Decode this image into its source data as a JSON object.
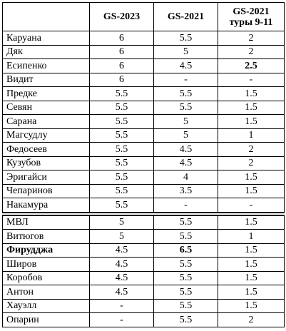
{
  "table": {
    "headers": [
      "GS-2023",
      "GS-2021",
      "GS-2021 туры 9-11"
    ],
    "groups": [
      {
        "rows": [
          [
            "Каруана",
            6,
            5.5,
            2
          ],
          [
            "Дяк",
            6,
            5,
            2
          ],
          [
            "Есипенко",
            6,
            4.5,
            2.5
          ],
          [
            "Видит",
            6,
            "-",
            "-"
          ],
          [
            "Предке",
            5.5,
            5.5,
            1.5
          ],
          [
            "Севян",
            5.5,
            5.5,
            1.5
          ],
          [
            "Сарана",
            5.5,
            5,
            1.5
          ],
          [
            "Магсудлу",
            5.5,
            5,
            1
          ],
          [
            "Федосеев",
            5.5,
            4.5,
            2
          ],
          [
            "Кузубов",
            5.5,
            4.5,
            2
          ],
          [
            "Эригайси",
            5.5,
            4,
            1.5
          ],
          [
            "Чепаринов",
            5.5,
            3.5,
            1.5
          ],
          [
            "Накамура",
            5.5,
            "-",
            "-"
          ]
        ]
      },
      {
        "rows": [
          [
            "МВЛ",
            5,
            5.5,
            1.5
          ],
          [
            "Витюгов",
            5,
            5.5,
            1
          ],
          [
            "Фирудджа",
            4.5,
            6.5,
            1.5
          ],
          [
            "Широв",
            4.5,
            5.5,
            1.5
          ],
          [
            "Коробов",
            4.5,
            5.5,
            1.5
          ],
          [
            "Антон",
            4.5,
            5.5,
            1.5
          ],
          [
            "Хауэлл",
            "-",
            5.5,
            1.5
          ],
          [
            "Опарин",
            "-",
            5.5,
            2
          ]
        ]
      }
    ]
  }
}
